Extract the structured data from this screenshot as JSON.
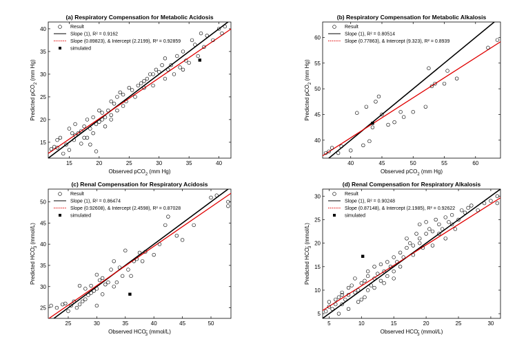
{
  "chart_data": [
    {
      "type": "scatter",
      "panel": "a",
      "title": "(a) Respiratory Compensation for Metabolic Acidosis",
      "xlabel": "Observed pCO",
      "xlabel_sub": "2",
      "xlabel_tail": " (mm Hg)",
      "ylabel": "Predicted pCO",
      "ylabel_sub": "2",
      "ylabel_tail": " (mm Hg)",
      "xlim": [
        11.5,
        42
      ],
      "ylim": [
        11.5,
        41.5
      ],
      "xticks": [
        15,
        20,
        25,
        30,
        35,
        40
      ],
      "yticks": [
        15,
        20,
        25,
        30,
        35,
        40
      ],
      "legend": {
        "position": "top-left",
        "entries": [
          "Result",
          "Slope (1), R² = 0.9162",
          "Slope (0.89823), & Intercept (2.2199), R² = 0.92859",
          "simulated"
        ]
      },
      "fit_line": {
        "slope": 0.89823,
        "intercept": 2.2199,
        "color": "#e00000"
      },
      "identity_line": {
        "slope": 1,
        "intercept": 0,
        "color": "#000000"
      },
      "simulated": [
        [
          36.8,
          33.1
        ]
      ],
      "points": [
        [
          12,
          13.5
        ],
        [
          12.5,
          14
        ],
        [
          13,
          15.5
        ],
        [
          13.5,
          16
        ],
        [
          14,
          12.5
        ],
        [
          14.5,
          14.5
        ],
        [
          15,
          18
        ],
        [
          15,
          13.3
        ],
        [
          15.5,
          17
        ],
        [
          16,
          16.5
        ],
        [
          16.5,
          17
        ],
        [
          17,
          17.5
        ],
        [
          17,
          14.7
        ],
        [
          17.5,
          18.5
        ],
        [
          18,
          20
        ],
        [
          18,
          16
        ],
        [
          18.5,
          18
        ],
        [
          19,
          20.5
        ],
        [
          19,
          17
        ],
        [
          19.5,
          19
        ],
        [
          20,
          22
        ],
        [
          20,
          19.5
        ],
        [
          20.5,
          21.5
        ],
        [
          21,
          20.5
        ],
        [
          21,
          18.5
        ],
        [
          21.5,
          22
        ],
        [
          22,
          21
        ],
        [
          22,
          20
        ],
        [
          22.5,
          23.5
        ],
        [
          23,
          22
        ],
        [
          23,
          25
        ],
        [
          23.5,
          26
        ],
        [
          24,
          25.5
        ],
        [
          24.5,
          24
        ],
        [
          25,
          27
        ],
        [
          25.5,
          26.5
        ],
        [
          26,
          25
        ],
        [
          26.5,
          27.5
        ],
        [
          27,
          28
        ],
        [
          27.5,
          27
        ],
        [
          28,
          29
        ],
        [
          28.5,
          30
        ],
        [
          29,
          27.5
        ],
        [
          29.5,
          31
        ],
        [
          30,
          30.5
        ],
        [
          30.5,
          32
        ],
        [
          31,
          29
        ],
        [
          31,
          33.5
        ],
        [
          31.5,
          31
        ],
        [
          32,
          32
        ],
        [
          32.5,
          30
        ],
        [
          33,
          34
        ],
        [
          33.5,
          31.5
        ],
        [
          34,
          35
        ],
        [
          34.5,
          33
        ],
        [
          35,
          32.5
        ],
        [
          35.5,
          37.5
        ],
        [
          36,
          36.5
        ],
        [
          36.5,
          34
        ],
        [
          37,
          39
        ],
        [
          37.5,
          36
        ],
        [
          38,
          38.5
        ],
        [
          39,
          37.5
        ],
        [
          40,
          40
        ],
        [
          40.5,
          39
        ],
        [
          41,
          40.5
        ],
        [
          17.5,
          16
        ],
        [
          18.5,
          14.5
        ],
        [
          19.5,
          13
        ],
        [
          16,
          19
        ],
        [
          13,
          13.8
        ],
        [
          29,
          30
        ],
        [
          27.5,
          28.5
        ],
        [
          34,
          31
        ],
        [
          24,
          23
        ],
        [
          22,
          24
        ],
        [
          20.5,
          20
        ],
        [
          15.8,
          15.5
        ]
      ]
    },
    {
      "type": "scatter",
      "panel": "b",
      "title": "(b) Respiratory Compensation for Metabolic Alkalosis",
      "xlabel": "Observed pCO",
      "xlabel_sub": "2",
      "xlabel_tail": " (mm Hg)",
      "ylabel": "Predicted pCO",
      "ylabel_sub": "2",
      "ylabel_tail": " (mm Hg)",
      "xlim": [
        35.5,
        64
      ],
      "ylim": [
        36.5,
        63
      ],
      "xticks": [
        40,
        45,
        50,
        55,
        60
      ],
      "yticks": [
        40,
        45,
        50,
        55,
        60
      ],
      "legend": {
        "position": "top-left",
        "entries": [
          "Result",
          "Slope (1), R² = 0.80514",
          "Slope (0.77863), & Intercept (9.323), R² = 0.8939"
        ]
      },
      "fit_line": {
        "slope": 0.77863,
        "intercept": 9.323,
        "color": "#e00000"
      },
      "identity_line": {
        "slope": 1,
        "intercept": 0,
        "color": "#000000"
      },
      "simulated": [
        [
          43.5,
          43.3
        ]
      ],
      "points": [
        [
          36,
          37.5
        ],
        [
          36.5,
          37.8
        ],
        [
          37,
          38.5
        ],
        [
          38,
          37.5
        ],
        [
          38.5,
          38.8
        ],
        [
          40,
          38
        ],
        [
          41,
          45.3
        ],
        [
          42,
          39
        ],
        [
          43,
          39.8
        ],
        [
          43.5,
          42.5
        ],
        [
          44,
          47.5
        ],
        [
          44.5,
          48.5
        ],
        [
          45,
          45
        ],
        [
          46,
          43
        ],
        [
          47,
          43.5
        ],
        [
          48,
          45.5
        ],
        [
          48.5,
          44.5
        ],
        [
          50,
          45.5
        ],
        [
          52,
          46.5
        ],
        [
          52.5,
          54
        ],
        [
          53,
          50.5
        ],
        [
          53.5,
          51
        ],
        [
          55,
          51
        ],
        [
          55.5,
          53.5
        ],
        [
          57,
          52
        ],
        [
          62,
          58
        ],
        [
          63.5,
          59.5
        ],
        [
          42.5,
          46.5
        ]
      ]
    },
    {
      "type": "scatter",
      "panel": "c",
      "title": "(c) Renal Compensation for Respiratory Acidosis",
      "xlabel": "Observed HCO",
      "xlabel_sub": "3",
      "xlabel_sup": "-",
      "xlabel_tail": " (mmol/L)",
      "ylabel": "Predicted HCO",
      "ylabel_sub": "3",
      "ylabel_sup": "-",
      "ylabel_tail": " (mmol/L)",
      "xlim": [
        21.5,
        53.5
      ],
      "ylim": [
        22.5,
        53
      ],
      "xticks": [
        25,
        30,
        35,
        40,
        45,
        50
      ],
      "yticks": [
        25,
        30,
        35,
        40,
        45,
        50
      ],
      "legend": {
        "position": "top-left",
        "entries": [
          "Result",
          "Slope (1), R² = 0.86474",
          "Slope (0.92608), & Intercept (2.4598), R² = 0.87028",
          "simulated"
        ]
      },
      "fit_line": {
        "slope": 0.92608,
        "intercept": 2.4598,
        "color": "#e00000"
      },
      "identity_line": {
        "slope": 1,
        "intercept": 0,
        "color": "#000000"
      },
      "simulated": [
        [
          35.8,
          28.2
        ]
      ],
      "points": [
        [
          22,
          25.5
        ],
        [
          23,
          25
        ],
        [
          24,
          25.8
        ],
        [
          24.5,
          26
        ],
        [
          25,
          24.2
        ],
        [
          25.5,
          25.5
        ],
        [
          26,
          26.5
        ],
        [
          26.5,
          25
        ],
        [
          27,
          25.8
        ],
        [
          27.5,
          26.5
        ],
        [
          28,
          27
        ],
        [
          28,
          29.5
        ],
        [
          28.5,
          28
        ],
        [
          29,
          28.5
        ],
        [
          29,
          30.2
        ],
        [
          29.5,
          29
        ],
        [
          30,
          25.5
        ],
        [
          30,
          29.5
        ],
        [
          30.5,
          31.5
        ],
        [
          31,
          28.2
        ],
        [
          31,
          32
        ],
        [
          31.5,
          30.5
        ],
        [
          32,
          31
        ],
        [
          32.5,
          34
        ],
        [
          33,
          30
        ],
        [
          33.5,
          31
        ],
        [
          34,
          34.5
        ],
        [
          34.5,
          32.5
        ],
        [
          35,
          38.5
        ],
        [
          35.5,
          34
        ],
        [
          36,
          32.5
        ],
        [
          36.5,
          36
        ],
        [
          37,
          36.5
        ],
        [
          37.5,
          38
        ],
        [
          38,
          36
        ],
        [
          38.5,
          38.2
        ],
        [
          40,
          37.5
        ],
        [
          41,
          40
        ],
        [
          42,
          44.5
        ],
        [
          42.5,
          46.5
        ],
        [
          44,
          42
        ],
        [
          45,
          41
        ],
        [
          47,
          44.5
        ],
        [
          50,
          51
        ],
        [
          51,
          51.5
        ],
        [
          53,
          50
        ],
        [
          53,
          49
        ],
        [
          27,
          30.2
        ],
        [
          33,
          36
        ],
        [
          30,
          32.8
        ]
      ]
    },
    {
      "type": "scatter",
      "panel": "d",
      "title": "(d) Renal Compensation for Respiratory Alkalosis",
      "xlabel": "Observed HCO",
      "xlabel_sub": "3",
      "xlabel_sup": "-",
      "xlabel_tail": " (mmol/L)",
      "ylabel": "Predicted HCO",
      "ylabel_sub": "3",
      "ylabel_sup": "-",
      "ylabel_tail": " (mmol/L)",
      "xlim": [
        4,
        31.5
      ],
      "ylim": [
        4,
        31.5
      ],
      "xticks": [
        5,
        10,
        15,
        20,
        25,
        30
      ],
      "yticks": [
        5,
        10,
        15,
        20,
        25,
        30
      ],
      "legend": {
        "position": "top-left",
        "entries": [
          "Result",
          "Slope (1), R² = 0.90248",
          "Slope (0.87148), & Intercept (2.1985), R² = 0.92622",
          "simulated"
        ]
      },
      "fit_line": {
        "slope": 0.87148,
        "intercept": 2.1985,
        "color": "#e00000"
      },
      "identity_line": {
        "slope": 1,
        "intercept": 0,
        "color": "#000000"
      },
      "simulated": [
        [
          10.2,
          17.2
        ]
      ],
      "points": [
        [
          4.5,
          5.5
        ],
        [
          5,
          6.5
        ],
        [
          5,
          7.5
        ],
        [
          5.5,
          6
        ],
        [
          6,
          8
        ],
        [
          6,
          7
        ],
        [
          6.5,
          8.5
        ],
        [
          7,
          7
        ],
        [
          7,
          9.5
        ],
        [
          7.5,
          8
        ],
        [
          8,
          9
        ],
        [
          8,
          6
        ],
        [
          8.5,
          11
        ],
        [
          9,
          9.5
        ],
        [
          9,
          12.5
        ],
        [
          9.5,
          10
        ],
        [
          10,
          8
        ],
        [
          10,
          11.5
        ],
        [
          10.5,
          12
        ],
        [
          11,
          10
        ],
        [
          11,
          13
        ],
        [
          11.5,
          11
        ],
        [
          12,
          12.5
        ],
        [
          12,
          15
        ],
        [
          12.5,
          13.5
        ],
        [
          13,
          12
        ],
        [
          13,
          15.5
        ],
        [
          13.5,
          14
        ],
        [
          14,
          13
        ],
        [
          14,
          16
        ],
        [
          14.5,
          15
        ],
        [
          15,
          14
        ],
        [
          15,
          17
        ],
        [
          15.5,
          16
        ],
        [
          16,
          18
        ],
        [
          16.5,
          17
        ],
        [
          17,
          19
        ],
        [
          17,
          21
        ],
        [
          17.5,
          20
        ],
        [
          18,
          19.5
        ],
        [
          18.5,
          22
        ],
        [
          19,
          20
        ],
        [
          19,
          21
        ],
        [
          19.5,
          19
        ],
        [
          20,
          22
        ],
        [
          20,
          24.5
        ],
        [
          20.5,
          23
        ],
        [
          21,
          22.5
        ],
        [
          21.5,
          25
        ],
        [
          22,
          22
        ],
        [
          22,
          24
        ],
        [
          22.5,
          23
        ],
        [
          23,
          25.5
        ],
        [
          23.5,
          24.5
        ],
        [
          24,
          26
        ],
        [
          24.5,
          23
        ],
        [
          25,
          25
        ],
        [
          25.5,
          27
        ],
        [
          26,
          26.5
        ],
        [
          26.5,
          27.5
        ],
        [
          27,
          28
        ],
        [
          28,
          27
        ],
        [
          29,
          28.5
        ],
        [
          30,
          29
        ],
        [
          31,
          30
        ],
        [
          31,
          28.5
        ],
        [
          6.5,
          5
        ],
        [
          8,
          10.5
        ],
        [
          9.5,
          7.5
        ],
        [
          10.5,
          8.5
        ],
        [
          12,
          10.5
        ],
        [
          13.5,
          11.5
        ],
        [
          15,
          12.5
        ],
        [
          16,
          15
        ],
        [
          18,
          17.5
        ],
        [
          19,
          24
        ],
        [
          21,
          19.5
        ],
        [
          23,
          21
        ],
        [
          24,
          24
        ],
        [
          11,
          14
        ],
        [
          7,
          9
        ]
      ]
    }
  ]
}
